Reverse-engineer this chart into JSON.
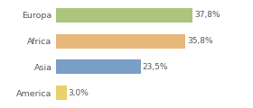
{
  "categories": [
    "Europa",
    "Africa",
    "Asia",
    "America"
  ],
  "values": [
    37.8,
    35.8,
    23.5,
    3.0
  ],
  "labels": [
    "37,8%",
    "35,8%",
    "23,5%",
    "3,0%"
  ],
  "bar_colors": [
    "#adc47d",
    "#e8b87a",
    "#7b9ec7",
    "#e8d06a"
  ],
  "background_color": "#ffffff",
  "xlim": [
    0,
    46
  ],
  "figsize": [
    2.8,
    1.2
  ],
  "dpi": 100
}
